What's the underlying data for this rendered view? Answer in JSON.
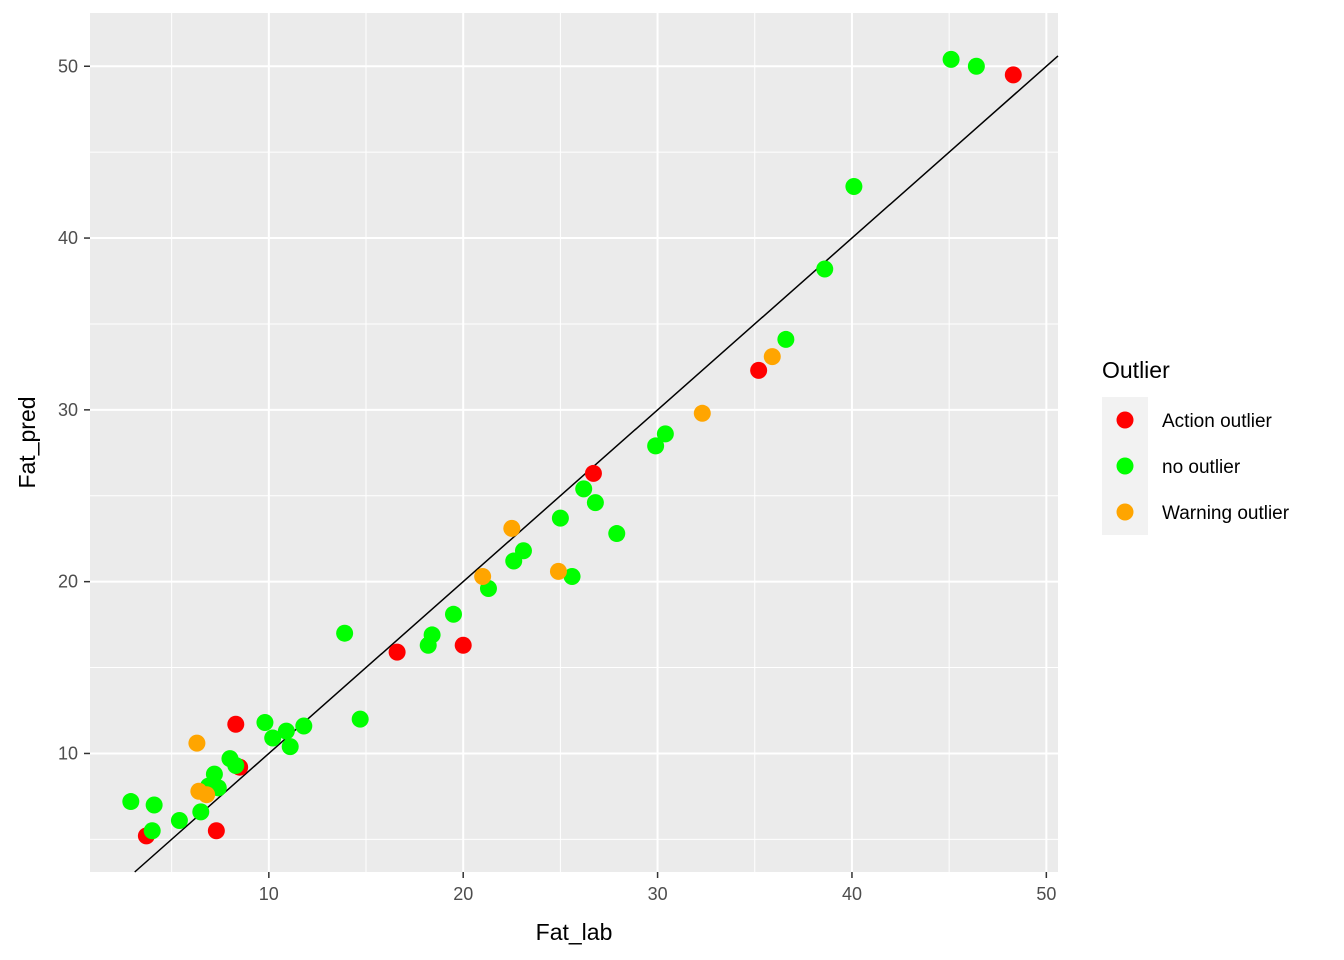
{
  "chart_data": {
    "type": "scatter",
    "xlabel": "Fat_lab",
    "ylabel": "Fat_pred",
    "xlim": [
      0.8,
      50.6
    ],
    "ylim": [
      3.1,
      53.1
    ],
    "x_ticks": [
      10,
      20,
      30,
      40,
      50
    ],
    "y_ticks": [
      10,
      20,
      30,
      40,
      50
    ],
    "x_tick_labels": [
      "10",
      "20",
      "30",
      "40",
      "50"
    ],
    "y_tick_labels": [
      "10",
      "20",
      "30",
      "40",
      "50"
    ],
    "grid": true,
    "background": "#ebebeb",
    "reference_line": {
      "intercept": 0,
      "slope": 1,
      "color": "#000000"
    },
    "legend": {
      "title": "Outlier",
      "position": "right",
      "entries": [
        {
          "label": "Action outlier",
          "color": "#ff0000"
        },
        {
          "label": "no outlier",
          "color": "#00ff00"
        },
        {
          "label": "Warning outlier",
          "color": "#ffa500"
        }
      ]
    },
    "series": [
      {
        "name": "Action outlier",
        "color": "#ff0000",
        "points": [
          [
            3.7,
            5.2
          ],
          [
            7.3,
            5.5
          ],
          [
            8.3,
            11.7
          ],
          [
            8.5,
            9.2
          ],
          [
            16.6,
            15.9
          ],
          [
            20.0,
            16.3
          ],
          [
            26.7,
            26.3
          ],
          [
            35.2,
            32.3
          ],
          [
            48.3,
            49.5
          ]
        ]
      },
      {
        "name": "no outlier",
        "color": "#00ff00",
        "points": [
          [
            2.9,
            7.2
          ],
          [
            4.0,
            5.5
          ],
          [
            4.1,
            7.0
          ],
          [
            5.4,
            6.1
          ],
          [
            6.5,
            6.6
          ],
          [
            6.9,
            8.1
          ],
          [
            7.2,
            8.8
          ],
          [
            7.4,
            8.0
          ],
          [
            8.0,
            9.7
          ],
          [
            8.3,
            9.3
          ],
          [
            9.8,
            11.8
          ],
          [
            10.2,
            10.9
          ],
          [
            10.9,
            11.3
          ],
          [
            11.1,
            10.4
          ],
          [
            11.8,
            11.6
          ],
          [
            13.9,
            17.0
          ],
          [
            14.7,
            12.0
          ],
          [
            18.2,
            16.3
          ],
          [
            18.4,
            16.9
          ],
          [
            19.5,
            18.1
          ],
          [
            21.3,
            19.6
          ],
          [
            22.6,
            21.2
          ],
          [
            23.1,
            21.8
          ],
          [
            25.0,
            23.7
          ],
          [
            25.6,
            20.3
          ],
          [
            26.2,
            25.4
          ],
          [
            26.8,
            24.6
          ],
          [
            27.9,
            22.8
          ],
          [
            29.9,
            27.9
          ],
          [
            30.4,
            28.6
          ],
          [
            36.6,
            34.1
          ],
          [
            38.6,
            38.2
          ],
          [
            40.1,
            43.0
          ],
          [
            45.1,
            50.4
          ],
          [
            46.4,
            50.0
          ]
        ]
      },
      {
        "name": "Warning outlier",
        "color": "#ffa500",
        "points": [
          [
            6.3,
            10.6
          ],
          [
            6.4,
            7.8
          ],
          [
            6.8,
            7.6
          ],
          [
            21.0,
            20.3
          ],
          [
            22.5,
            23.1
          ],
          [
            24.9,
            20.6
          ],
          [
            32.3,
            29.8
          ],
          [
            35.9,
            33.1
          ]
        ]
      }
    ]
  }
}
